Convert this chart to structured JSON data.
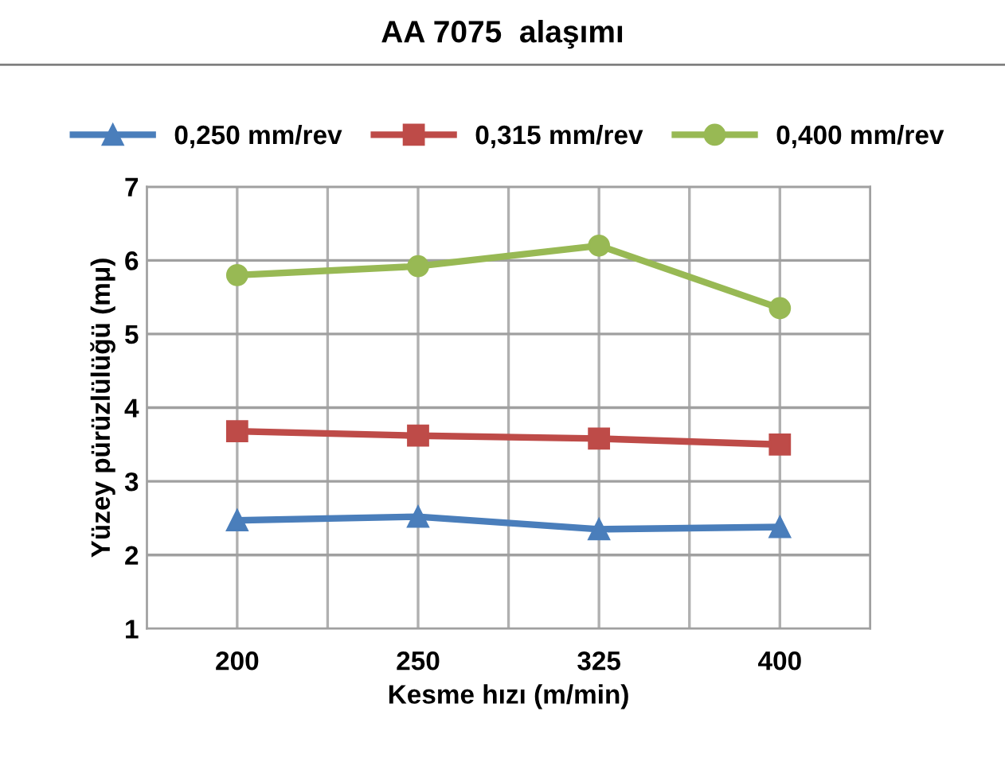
{
  "chart_data": {
    "type": "line",
    "title": "AA 7075  alaşımı",
    "xlabel": "Kesme hızı (m/min)",
    "ylabel": "Yüzey pürüzlülüğü (mμ)",
    "categories": [
      "200",
      "250",
      "325",
      "400"
    ],
    "series": [
      {
        "name": "0,250 mm/rev",
        "color": "#4a7ebb",
        "marker": "triangle",
        "values": [
          2.47,
          2.52,
          2.35,
          2.38
        ]
      },
      {
        "name": "0,315 mm/rev",
        "color": "#be4b48",
        "marker": "square",
        "values": [
          3.68,
          3.62,
          3.58,
          3.5
        ]
      },
      {
        "name": "0,400 mm/rev",
        "color": "#98b954",
        "marker": "circle",
        "values": [
          5.8,
          5.92,
          6.2,
          5.35
        ]
      }
    ],
    "ylim": [
      1,
      7
    ],
    "yticks": [
      1,
      2,
      3,
      4,
      5,
      6,
      7
    ],
    "grid": true,
    "legend": "top",
    "line_style": "solid"
  }
}
